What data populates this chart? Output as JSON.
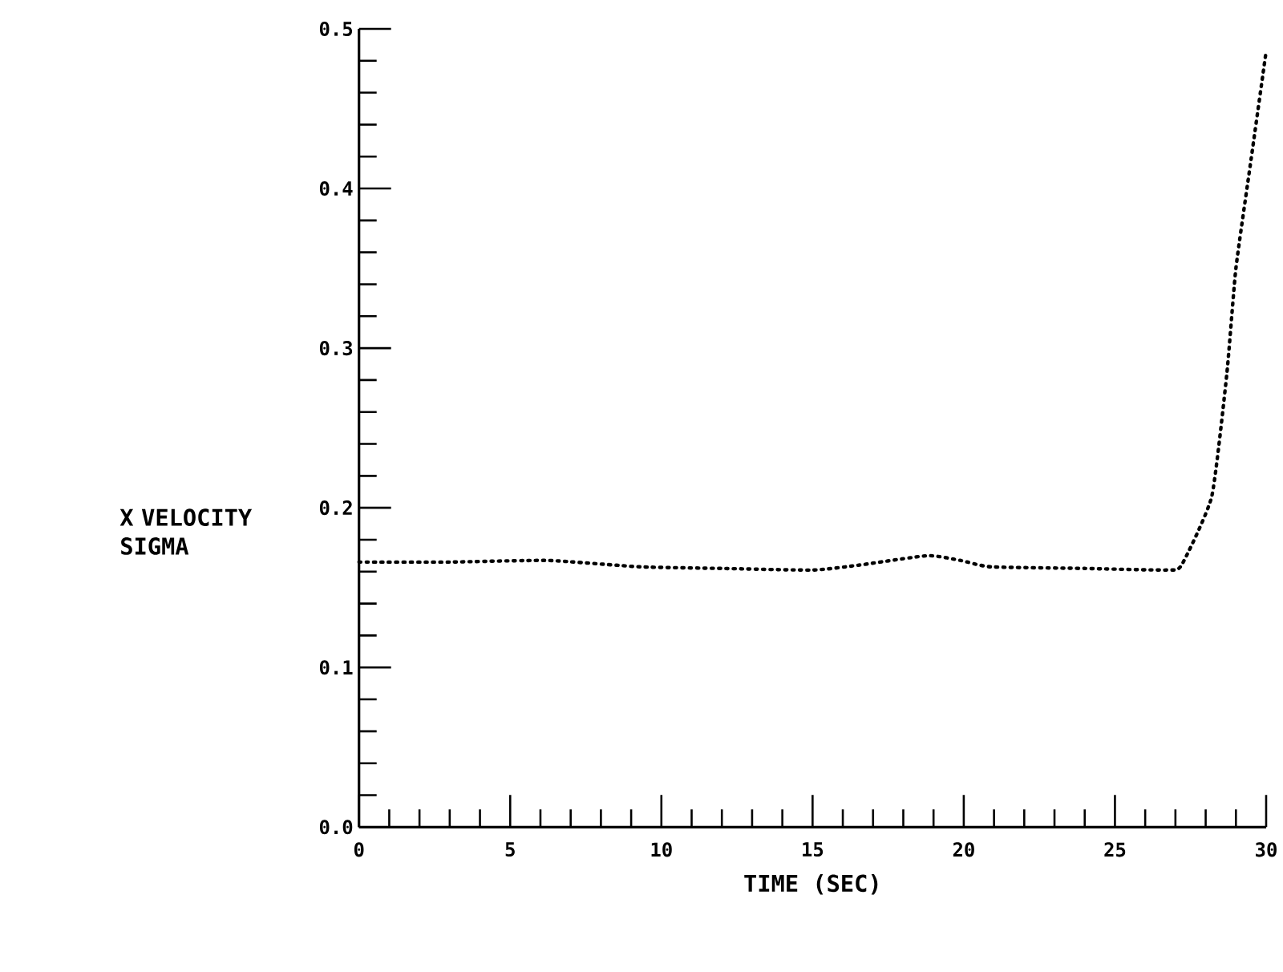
{
  "chart_data": {
    "type": "line",
    "xlabel": "TIME (SEC)",
    "ylabel": "X VELOCITY SIGMA",
    "x": [
      0,
      3,
      6.25,
      9.3,
      12,
      15,
      16.5,
      18.8,
      19.9,
      20.9,
      24,
      26.7,
      27.2,
      28.2,
      28.7,
      29.0,
      29.5,
      30
    ],
    "series": [
      {
        "color": "#000000",
        "values": [
          0.166,
          0.166,
          0.167,
          0.163,
          0.162,
          0.161,
          0.164,
          0.17,
          0.167,
          0.163,
          0.162,
          0.161,
          0.164,
          0.207,
          0.284,
          0.35,
          0.418,
          0.486
        ]
      }
    ],
    "xlim": [
      0,
      30
    ],
    "ylim": [
      0,
      0.5
    ],
    "xticks": [
      0,
      5,
      10,
      15,
      20,
      25,
      30
    ],
    "yticks": [
      {
        "value": 0,
        "label": "0.0"
      },
      {
        "value": 0.1,
        "label": "0.1"
      },
      {
        "value": 0.2,
        "label": "0.2"
      },
      {
        "value": 0.3,
        "label": "0.3"
      },
      {
        "value": 0.4,
        "label": "0.4"
      },
      {
        "value": 0.5,
        "label": "0.5"
      }
    ],
    "marker": "none",
    "line_style": "dotted"
  }
}
